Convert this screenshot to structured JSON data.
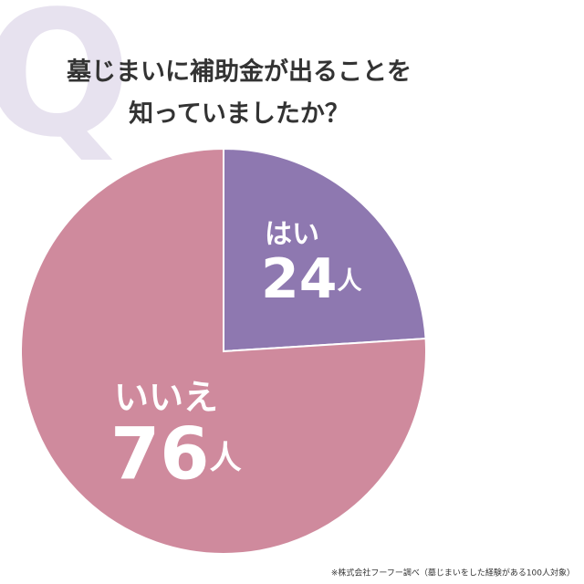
{
  "chart_data": {
    "type": "pie",
    "watermark": "Q",
    "title": [
      "墓じまいに補助金が出ることを",
      "知っていましたか？"
    ],
    "categories": [
      "はい",
      "いいえ"
    ],
    "values": [
      24,
      76
    ],
    "value_labels": [
      "24人",
      "76人"
    ],
    "colors": [
      "#8e78b0",
      "#cf8a9d"
    ],
    "note": "※株式会社フーフー調べ（墓じまいをした経験がある100人対象）"
  }
}
